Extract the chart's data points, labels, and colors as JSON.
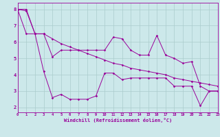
{
  "xlabel": "Windchill (Refroidissement éolien,°C)",
  "bg_color": "#cce8ea",
  "line_color": "#990099",
  "grid_color": "#aacccc",
  "x_ticks": [
    0,
    1,
    2,
    3,
    4,
    5,
    6,
    7,
    8,
    9,
    10,
    11,
    12,
    13,
    14,
    15,
    16,
    17,
    18,
    19,
    20,
    21,
    22,
    23
  ],
  "y_ticks": [
    2,
    3,
    4,
    5,
    6,
    7,
    8
  ],
  "ylim": [
    1.7,
    8.4
  ],
  "xlim": [
    0,
    23
  ],
  "line1_x": [
    0,
    1,
    2,
    3,
    4,
    5,
    6,
    7,
    8,
    9,
    10,
    11,
    12,
    13,
    14,
    15,
    16,
    17,
    18,
    19,
    20,
    21,
    22,
    23
  ],
  "line1_y": [
    8.0,
    7.9,
    6.5,
    6.5,
    5.1,
    5.5,
    5.5,
    5.5,
    5.5,
    5.5,
    5.5,
    6.3,
    6.2,
    5.5,
    5.2,
    5.2,
    6.4,
    5.2,
    5.0,
    4.7,
    4.8,
    3.3,
    3.0,
    3.0
  ],
  "line2_x": [
    0,
    1,
    2,
    3,
    4,
    5,
    6,
    7,
    8,
    9,
    10,
    11,
    12,
    13,
    14,
    15,
    16,
    17,
    18,
    19,
    20,
    21,
    22,
    23
  ],
  "line2_y": [
    8.0,
    6.5,
    6.5,
    6.5,
    6.2,
    5.9,
    5.7,
    5.5,
    5.3,
    5.1,
    4.9,
    4.7,
    4.6,
    4.4,
    4.3,
    4.2,
    4.1,
    4.0,
    3.8,
    3.7,
    3.6,
    3.5,
    3.4,
    3.3
  ],
  "line3_x": [
    0,
    1,
    2,
    3,
    4,
    5,
    6,
    7,
    8,
    9,
    10,
    11,
    12,
    13,
    14,
    15,
    16,
    17,
    18,
    19,
    20,
    21,
    22,
    23
  ],
  "line3_y": [
    8.0,
    8.0,
    6.5,
    4.2,
    2.6,
    2.8,
    2.5,
    2.5,
    2.5,
    2.7,
    4.1,
    4.1,
    3.7,
    3.8,
    3.8,
    3.8,
    3.8,
    3.8,
    3.3,
    3.3,
    3.3,
    2.1,
    3.0,
    3.0
  ],
  "lw": 0.7,
  "ms": 1.8
}
